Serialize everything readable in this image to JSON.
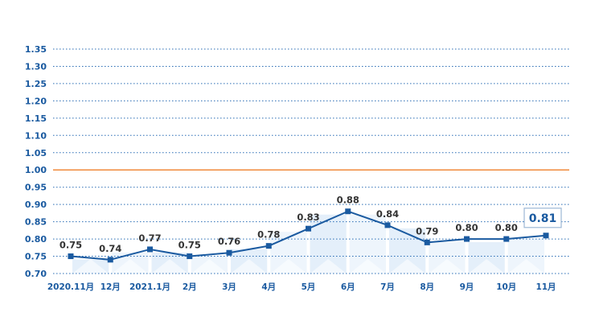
{
  "chart_data": {
    "type": "line",
    "categories": [
      "2020.11月",
      "12月",
      "2021.1月",
      "2月",
      "3月",
      "4月",
      "5月",
      "6月",
      "7月",
      "8月",
      "9月",
      "10月",
      "11月"
    ],
    "series": [
      {
        "values": [
          0.75,
          0.74,
          0.77,
          0.75,
          0.76,
          0.78,
          0.83,
          0.88,
          0.84,
          0.79,
          0.8,
          0.8,
          0.81
        ]
      }
    ],
    "data_labels": [
      "0.75",
      "0.74",
      "0.77",
      "0.75",
      "0.76",
      "0.78",
      "0.83",
      "0.88",
      "0.84",
      "0.79",
      "0.80",
      "0.80",
      "0.81"
    ],
    "ylim": [
      0.7,
      1.35
    ],
    "yticks": [
      "0.70",
      "0.75",
      "0.80",
      "0.85",
      "0.90",
      "0.95",
      "1.00",
      "1.05",
      "1.10",
      "1.15",
      "1.20",
      "1.25",
      "1.30",
      "1.35"
    ],
    "reference_line": 1.0,
    "grid": true,
    "colors": {
      "line": "#1a5aa0",
      "marker": "#1a5aa0",
      "reference": "#f08a3c",
      "grid": "#2a6db5",
      "axis_text": "#1a5aa0",
      "label_text": "#333333",
      "highlight_box": "#1a5aa0"
    }
  }
}
